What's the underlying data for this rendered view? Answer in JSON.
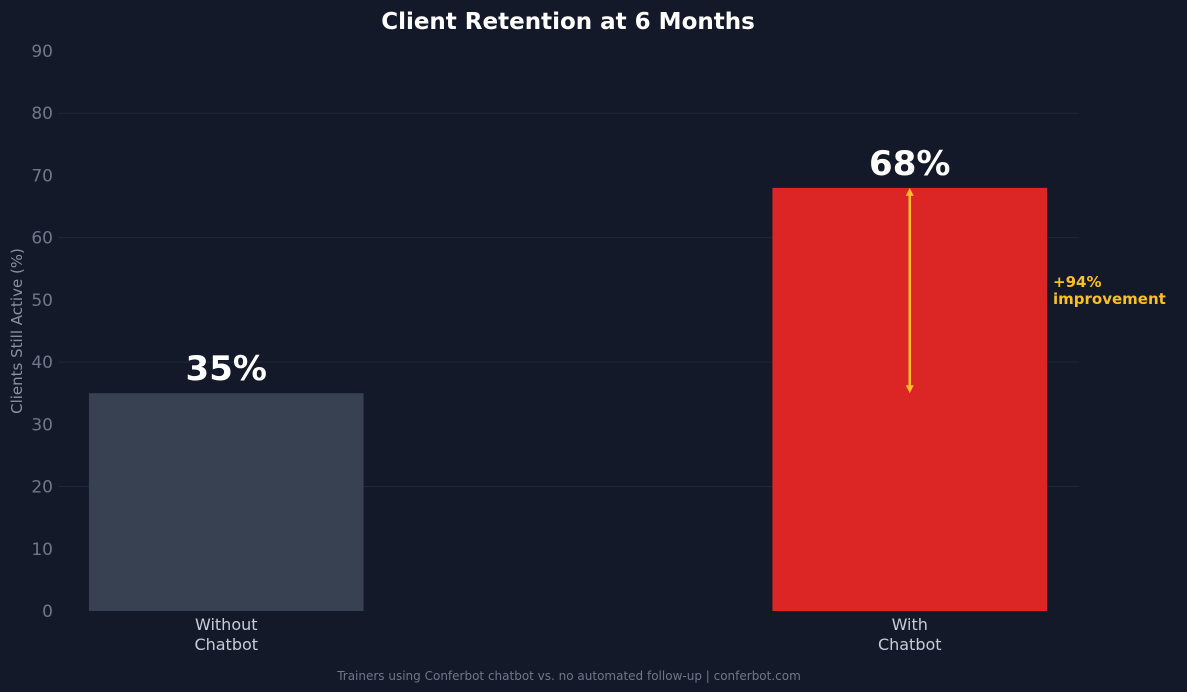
{
  "chart_data": {
    "type": "bar",
    "title": "Client Retention at 6 Months",
    "ylabel": "Clients Still Active (%)",
    "xlabel": "",
    "ylim": [
      0,
      90
    ],
    "yticks": [
      0,
      10,
      20,
      30,
      40,
      50,
      60,
      70,
      80,
      90
    ],
    "categories": [
      [
        "Without",
        "Chatbot"
      ],
      [
        "With",
        "Chatbot"
      ]
    ],
    "values": [
      35,
      68
    ],
    "data_labels": [
      "35%",
      "68%"
    ],
    "bar_colors": [
      "#374151",
      "#dc2626"
    ],
    "grid": true,
    "annotation": {
      "lines": [
        "+94%",
        "improvement"
      ],
      "color": "#fbbf24",
      "arrow_from": 35,
      "arrow_to": 68,
      "category_index": 1
    },
    "footer": "Trainers using Conferbot chatbot vs. no automated follow-up  |  conferbot.com"
  }
}
